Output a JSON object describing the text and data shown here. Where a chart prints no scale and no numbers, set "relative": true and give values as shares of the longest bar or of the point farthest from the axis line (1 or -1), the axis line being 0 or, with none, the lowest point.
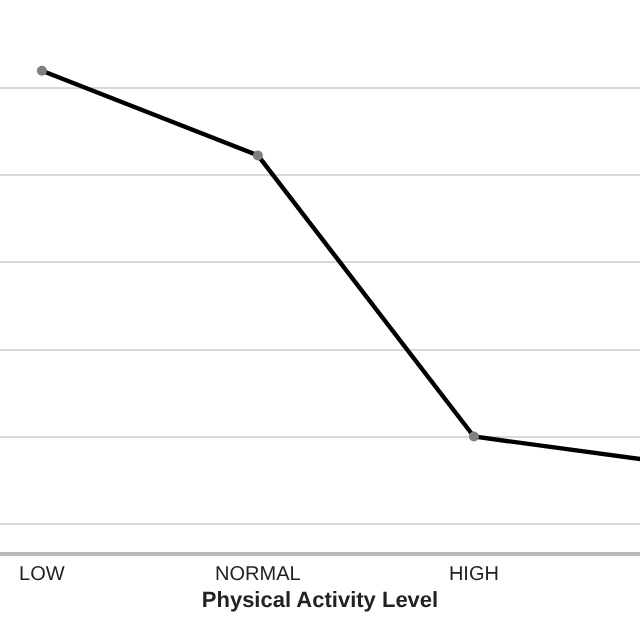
{
  "chart_data": {
    "type": "line",
    "xlabel": "Physical Activity Level",
    "categories": [
      "LOW",
      "NORMAL",
      "HIGH",
      null
    ],
    "relative": true,
    "series": [
      {
        "color": "#000000",
        "values": [
          1,
          0.824,
          0.24,
          0.179
        ]
      }
    ],
    "marker": "circle",
    "grid": "y"
  }
}
